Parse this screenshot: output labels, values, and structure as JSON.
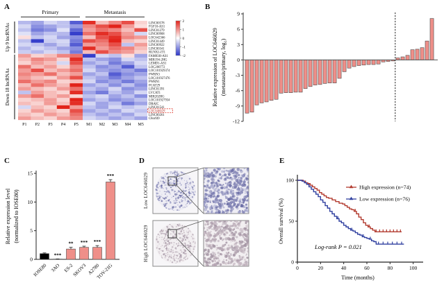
{
  "panels": {
    "a_letter": "A",
    "b_letter": "B",
    "c_letter": "C",
    "d_letter": "D",
    "e_letter": "E"
  },
  "chart_data": [
    {
      "id": "heatmap",
      "type": "heatmap",
      "col_groups": [
        {
          "label": "Primary",
          "cols": [
            0,
            4
          ]
        },
        {
          "label": "Metastasis",
          "cols": [
            5,
            9
          ]
        }
      ],
      "row_groups": [
        {
          "label": "Up 9 lncRNAs",
          "rows": [
            0,
            8
          ]
        },
        {
          "label": "Down 18 lncRNAs",
          "rows": [
            9,
            26
          ]
        }
      ],
      "columns": [
        "P1",
        "P2",
        "P3",
        "P4",
        "P5",
        "M1",
        "M2",
        "M3",
        "M4",
        "M5"
      ],
      "rows": [
        "LINC00578",
        "FGF10-AS1",
        "LINC01279",
        "LINC00968",
        "LOC642366",
        "LINC01449",
        "LINC00922",
        "LINC00341",
        "RUNX1-IT1",
        "FAM83H-AS1",
        "MIR194-2HG",
        "LEMD1-AS1",
        "LOC200772",
        "LOC101929374",
        "PWRN3",
        "LOC101927476",
        "PWRN1",
        "PCAT29",
        "LINC01391",
        "LVCAT1",
        "MIR202HG",
        "LOC101927934",
        "DRAIC",
        "LINC01541",
        "LOC646029",
        "LINC00261",
        "C8orf49"
      ],
      "highlighted_row": "LOC646029",
      "values": [
        [
          -0.7,
          -0.9,
          -0.4,
          -0.6,
          -1.6,
          1.9,
          0.6,
          1.1,
          1.6,
          0.4
        ],
        [
          -0.4,
          -1.1,
          -0.9,
          -0.6,
          -1.0,
          1.1,
          1.6,
          2.0,
          0.9,
          0.3
        ],
        [
          -0.6,
          -1.3,
          -1.1,
          -0.3,
          -1.5,
          0.9,
          1.3,
          1.1,
          0.6,
          1.6
        ],
        [
          -0.3,
          -0.9,
          -0.6,
          -0.7,
          -1.9,
          1.3,
          1.9,
          1.6,
          0.9,
          -0.4
        ],
        [
          0.3,
          -0.6,
          -0.4,
          -0.9,
          -1.1,
          0.6,
          1.6,
          1.9,
          1.1,
          0.9
        ],
        [
          -0.6,
          -1.9,
          -0.5,
          -0.4,
          -1.3,
          1.6,
          1.3,
          2.0,
          0.6,
          0.4
        ],
        [
          -0.4,
          -0.6,
          -0.9,
          -0.5,
          -1.6,
          0.9,
          1.1,
          1.6,
          -0.6,
          0.9
        ],
        [
          -0.7,
          -0.4,
          -0.6,
          -0.9,
          -1.1,
          1.9,
          0.9,
          1.3,
          1.1,
          0.6
        ],
        [
          -0.5,
          -0.7,
          -0.4,
          -0.6,
          -1.3,
          0.6,
          1.6,
          1.1,
          0.9,
          0.4
        ],
        [
          0.9,
          0.4,
          0.6,
          1.1,
          1.3,
          -1.9,
          -0.4,
          -0.6,
          0.3,
          -0.9
        ],
        [
          0.6,
          1.1,
          0.9,
          0.4,
          1.9,
          -0.6,
          -0.9,
          -1.1,
          -0.4,
          -0.6
        ],
        [
          0.4,
          0.9,
          0.6,
          -0.4,
          1.6,
          -0.9,
          -0.6,
          -1.3,
          -0.9,
          -0.4
        ],
        [
          1.3,
          0.6,
          0.9,
          0.4,
          1.1,
          -0.6,
          -1.1,
          -0.9,
          -1.6,
          -0.6
        ],
        [
          0.9,
          1.6,
          0.6,
          0.9,
          1.3,
          -0.4,
          -0.9,
          -1.1,
          -0.9,
          -1.3
        ],
        [
          1.1,
          0.9,
          1.3,
          0.6,
          0.9,
          -0.9,
          -0.6,
          -1.6,
          -1.1,
          -0.9
        ],
        [
          0.9,
          0.6,
          0.4,
          0.9,
          1.6,
          -0.6,
          -0.9,
          -1.3,
          -0.9,
          -0.6
        ],
        [
          1.3,
          0.9,
          1.1,
          0.4,
          0.6,
          -0.4,
          -1.1,
          -0.9,
          -1.3,
          -0.9
        ],
        [
          0.6,
          1.3,
          0.9,
          0.6,
          2.0,
          -0.9,
          -0.6,
          -1.1,
          -0.6,
          -1.1
        ],
        [
          0.9,
          0.6,
          0.4,
          0.9,
          1.3,
          -0.6,
          -0.9,
          -0.4,
          -1.1,
          -0.9
        ],
        [
          -0.6,
          0.9,
          0.6,
          0.4,
          1.9,
          -0.9,
          -1.3,
          -0.6,
          -0.9,
          -0.4
        ],
        [
          0.9,
          1.3,
          0.6,
          0.9,
          0.4,
          -0.6,
          -0.4,
          -0.9,
          -0.6,
          -1.1
        ],
        [
          0.4,
          0.6,
          0.9,
          0.4,
          2.0,
          -0.9,
          -0.6,
          -1.1,
          -0.9,
          -0.6
        ],
        [
          0.6,
          0.4,
          0.9,
          0.6,
          1.9,
          -0.4,
          -0.9,
          -0.6,
          -1.3,
          -0.9
        ],
        [
          -0.4,
          0.6,
          0.4,
          2.0,
          0.9,
          -0.6,
          -0.9,
          -0.4,
          -0.6,
          -0.4
        ],
        [
          0.4,
          0.9,
          0.6,
          0.4,
          1.6,
          -0.9,
          -0.6,
          -0.9,
          -0.4,
          -0.6
        ],
        [
          0.6,
          0.4,
          0.9,
          0.6,
          1.3,
          -0.6,
          -0.9,
          -0.6,
          -0.9,
          -0.4
        ],
        [
          0.9,
          0.6,
          0.4,
          0.9,
          1.1,
          -0.4,
          -0.6,
          -0.9,
          -0.6,
          -0.9
        ]
      ],
      "colorbar_ticks": [
        2,
        1,
        0,
        -1,
        -2
      ],
      "color_positive": "#e2231a",
      "color_negative": "#2b35c8",
      "color_zero": "#ffffff",
      "highlight_box_color": "#e03a2f"
    },
    {
      "id": "waterfall",
      "type": "bar",
      "ylabel_line1": "Relative expression of LOC646029",
      "ylabel_line2": "(metastasis/primary, log₂)",
      "yticks": [
        9,
        6,
        3,
        0,
        -3,
        -6,
        -9,
        -12
      ],
      "ylim": [
        -12,
        9
      ],
      "values": [
        -10.4,
        -10.2,
        -8.8,
        -8.4,
        -8.2,
        -7.9,
        -7.7,
        -6.5,
        -6.4,
        -6.4,
        -6.3,
        -6.3,
        -5.6,
        -5.2,
        -4.9,
        -4.8,
        -4.6,
        -4.5,
        -4.5,
        -3.6,
        -2.3,
        -1.6,
        -1.3,
        -1.1,
        -1.0,
        -0.9,
        -0.9,
        -0.8,
        -0.4,
        -0.3,
        -0.2,
        0.4,
        0.6,
        0.9,
        2.0,
        2.1,
        2.4,
        3.7,
        8.1
      ],
      "divider_after_index": 30,
      "bar_color": "#ef8f89",
      "bar_border": "#4a4a4a"
    },
    {
      "id": "cell-expression",
      "type": "bar",
      "ylabel_line1": "Relative expression level",
      "ylabel_line2": "(normalized to IOSE80)",
      "yticks": [
        0,
        5,
        10,
        15
      ],
      "ylim": [
        0,
        15
      ],
      "categories": [
        "IOSE80",
        "3AO",
        "ES-2",
        "SKOV3",
        "A2780",
        "TOV-21G"
      ],
      "values": [
        1.0,
        0.05,
        1.8,
        2.1,
        2.1,
        13.5
      ],
      "errors": [
        0.12,
        0.03,
        0.3,
        0.2,
        0.3,
        0.4
      ],
      "significance": [
        "",
        "***",
        "**",
        "***",
        "***",
        "***"
      ],
      "bar_colors": [
        "#000000",
        "#ef8f89",
        "#ef8f89",
        "#ef8f89",
        "#ef8f89",
        "#ef8f89"
      ],
      "bar_border": "#4a4a4a"
    },
    {
      "id": "survival",
      "type": "line",
      "xlabel": "Time (months)",
      "ylabel": "Overall survival (%)",
      "xticks": [
        0,
        20,
        40,
        60,
        80,
        100
      ],
      "yticks": [
        0,
        50,
        100
      ],
      "xlim": [
        0,
        105
      ],
      "ylim": [
        0,
        100
      ],
      "annotation": "Log-rank P = 0.021",
      "legend_position": "top-right",
      "series": [
        {
          "name": "High expression (n=74)",
          "color": "#b23a2e",
          "points": [
            [
              0,
              100
            ],
            [
              5,
              99
            ],
            [
              7,
              97
            ],
            [
              9,
              96
            ],
            [
              11,
              94
            ],
            [
              13,
              92
            ],
            [
              15,
              90
            ],
            [
              17,
              88
            ],
            [
              19,
              85
            ],
            [
              21,
              83
            ],
            [
              23,
              81
            ],
            [
              25,
              79
            ],
            [
              27,
              78
            ],
            [
              30,
              76
            ],
            [
              33,
              74
            ],
            [
              36,
              72
            ],
            [
              39,
              71
            ],
            [
              41,
              69
            ],
            [
              43,
              67
            ],
            [
              45,
              65
            ],
            [
              47,
              64
            ],
            [
              49,
              62
            ],
            [
              51,
              59
            ],
            [
              53,
              55
            ],
            [
              55,
              52
            ],
            [
              57,
              48
            ],
            [
              59,
              45
            ],
            [
              61,
              43
            ],
            [
              63,
              41
            ],
            [
              65,
              39
            ],
            [
              67,
              37
            ],
            [
              90,
              37
            ]
          ],
          "censors": [
            50,
            62,
            68,
            71,
            74,
            77,
            80,
            83,
            86,
            89
          ]
        },
        {
          "name": "Low expression (n=76)",
          "color": "#2f3f9f",
          "points": [
            [
              0,
              100
            ],
            [
              4,
              99
            ],
            [
              6,
              97
            ],
            [
              8,
              95
            ],
            [
              10,
              92
            ],
            [
              12,
              89
            ],
            [
              14,
              86
            ],
            [
              16,
              83
            ],
            [
              18,
              80
            ],
            [
              20,
              76
            ],
            [
              22,
              73
            ],
            [
              24,
              69
            ],
            [
              26,
              66
            ],
            [
              28,
              62
            ],
            [
              30,
              59
            ],
            [
              32,
              56
            ],
            [
              34,
              53
            ],
            [
              36,
              50
            ],
            [
              38,
              48
            ],
            [
              40,
              45
            ],
            [
              42,
              43
            ],
            [
              44,
              41
            ],
            [
              46,
              39
            ],
            [
              48,
              38
            ],
            [
              50,
              36
            ],
            [
              52,
              34
            ],
            [
              54,
              33
            ],
            [
              56,
              31
            ],
            [
              58,
              30
            ],
            [
              60,
              29
            ],
            [
              62,
              28
            ],
            [
              64,
              26
            ],
            [
              66,
              25
            ],
            [
              68,
              22
            ],
            [
              92,
              22
            ]
          ],
          "censors": [
            35,
            47,
            57,
            63,
            70,
            74,
            78,
            82,
            86,
            90
          ]
        }
      ]
    }
  ],
  "panel_d": {
    "rows": [
      {
        "label": "Low LOC646029",
        "core_bg": "#eeedf4",
        "dot_colors": [
          "#7e80b2",
          "#9a9cc6",
          "#6b6da5"
        ]
      },
      {
        "label": "High LOC646029",
        "core_bg": "#f2eff1",
        "dot_colors": [
          "#b3a4b1",
          "#c4b6c0",
          "#a394a3"
        ]
      }
    ],
    "frame_color": "#8a8a8a"
  }
}
